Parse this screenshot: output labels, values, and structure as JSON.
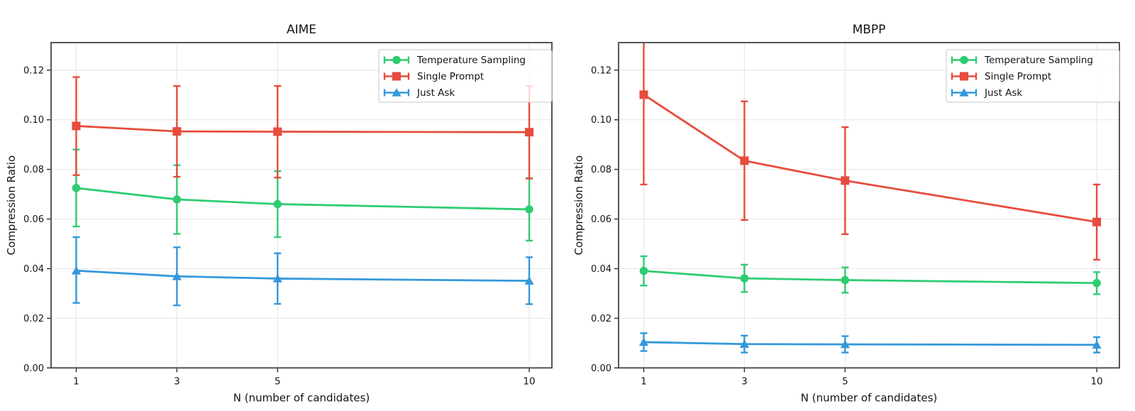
{
  "figure": {
    "background": "#ffffff",
    "text_color": "#141414",
    "spine_color": "#3a3a3a",
    "grid_color": "#e7e7e7",
    "legend_frame_color": "#c8c8c8"
  },
  "chart_data": [
    {
      "type": "line",
      "title": "AIME",
      "xlabel": "N (number of candidates)",
      "ylabel": "Compression Ratio",
      "x": [
        1,
        3,
        5,
        10
      ],
      "x_tick_labels": [
        "1",
        "3",
        "5",
        "10"
      ],
      "y_ticks": [
        0,
        0.02,
        0.04,
        0.06,
        0.08,
        0.1,
        0.12
      ],
      "y_tick_labels": [
        "0.00",
        "0.02",
        "0.04",
        "0.06",
        "0.08",
        "0.10",
        "0.12"
      ],
      "xlim": [
        0.5,
        10.45
      ],
      "ylim": [
        0,
        0.1311
      ],
      "grid": true,
      "legend_position": "upper-right",
      "series": [
        {
          "name": "Temperature Sampling",
          "marker": "circle",
          "color": "#2ecc71",
          "values": [
            0.0725,
            0.0679,
            0.066,
            0.0639
          ],
          "err_low": [
            0.057,
            0.054,
            0.0527,
            0.0513
          ],
          "err_high": [
            0.088,
            0.0817,
            0.0793,
            0.0765
          ]
        },
        {
          "name": "Single Prompt",
          "marker": "square",
          "color": "#e74c3c",
          "values": [
            0.0975,
            0.0953,
            0.0952,
            0.095
          ],
          "err_low": [
            0.0777,
            0.077,
            0.0767,
            0.0763
          ],
          "err_high": [
            0.1172,
            0.1136,
            0.1136,
            0.1136
          ]
        },
        {
          "name": "Just Ask",
          "marker": "triangle",
          "color": "#3498db",
          "values": [
            0.0392,
            0.0369,
            0.036,
            0.0351
          ],
          "err_low": [
            0.0262,
            0.0252,
            0.0258,
            0.0257
          ],
          "err_high": [
            0.0527,
            0.0486,
            0.0462,
            0.0446
          ]
        }
      ]
    },
    {
      "type": "line",
      "title": "MBPP",
      "xlabel": "N (number of candidates)",
      "ylabel": "Compression Ratio",
      "x": [
        1,
        3,
        5,
        10
      ],
      "x_tick_labels": [
        "1",
        "3",
        "5",
        "10"
      ],
      "y_ticks": [
        0,
        0.02,
        0.04,
        0.06,
        0.08,
        0.1,
        0.12
      ],
      "y_tick_labels": [
        "0.00",
        "0.02",
        "0.04",
        "0.06",
        "0.08",
        "0.10",
        "0.12"
      ],
      "xlim": [
        0.5,
        10.45
      ],
      "ylim": [
        0,
        0.1311
      ],
      "grid": true,
      "legend_position": "upper-right",
      "series": [
        {
          "name": "Temperature Sampling",
          "marker": "circle",
          "color": "#2ecc71",
          "values": [
            0.0391,
            0.0361,
            0.0354,
            0.0342
          ],
          "err_low": [
            0.0332,
            0.0306,
            0.0303,
            0.0297
          ],
          "err_high": [
            0.045,
            0.0416,
            0.0405,
            0.0386
          ]
        },
        {
          "name": "Single Prompt",
          "marker": "square",
          "color": "#e74c3c",
          "values": [
            0.1101,
            0.0835,
            0.0755,
            0.0588
          ],
          "err_low": [
            0.0739,
            0.0596,
            0.0539,
            0.0436
          ],
          "err_high": [
            0.1463,
            0.1074,
            0.097,
            0.0739
          ]
        },
        {
          "name": "Just Ask",
          "marker": "triangle",
          "color": "#3498db",
          "values": [
            0.0104,
            0.0096,
            0.0095,
            0.0093
          ],
          "err_low": [
            0.0068,
            0.0062,
            0.0062,
            0.0062
          ],
          "err_high": [
            0.014,
            0.013,
            0.0128,
            0.0124
          ]
        }
      ]
    }
  ]
}
